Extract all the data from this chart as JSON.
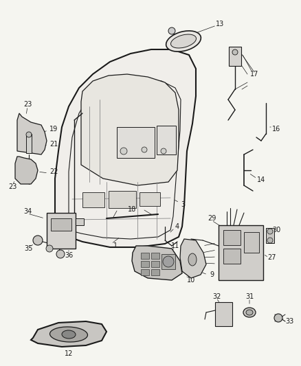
{
  "bg_color": "#f5f5f0",
  "fig_width": 4.38,
  "fig_height": 5.33,
  "dpi": 100,
  "dark": "#1a1a1a",
  "gray": "#888888",
  "light_gray": "#cccccc",
  "mid_gray": "#aaaaaa"
}
